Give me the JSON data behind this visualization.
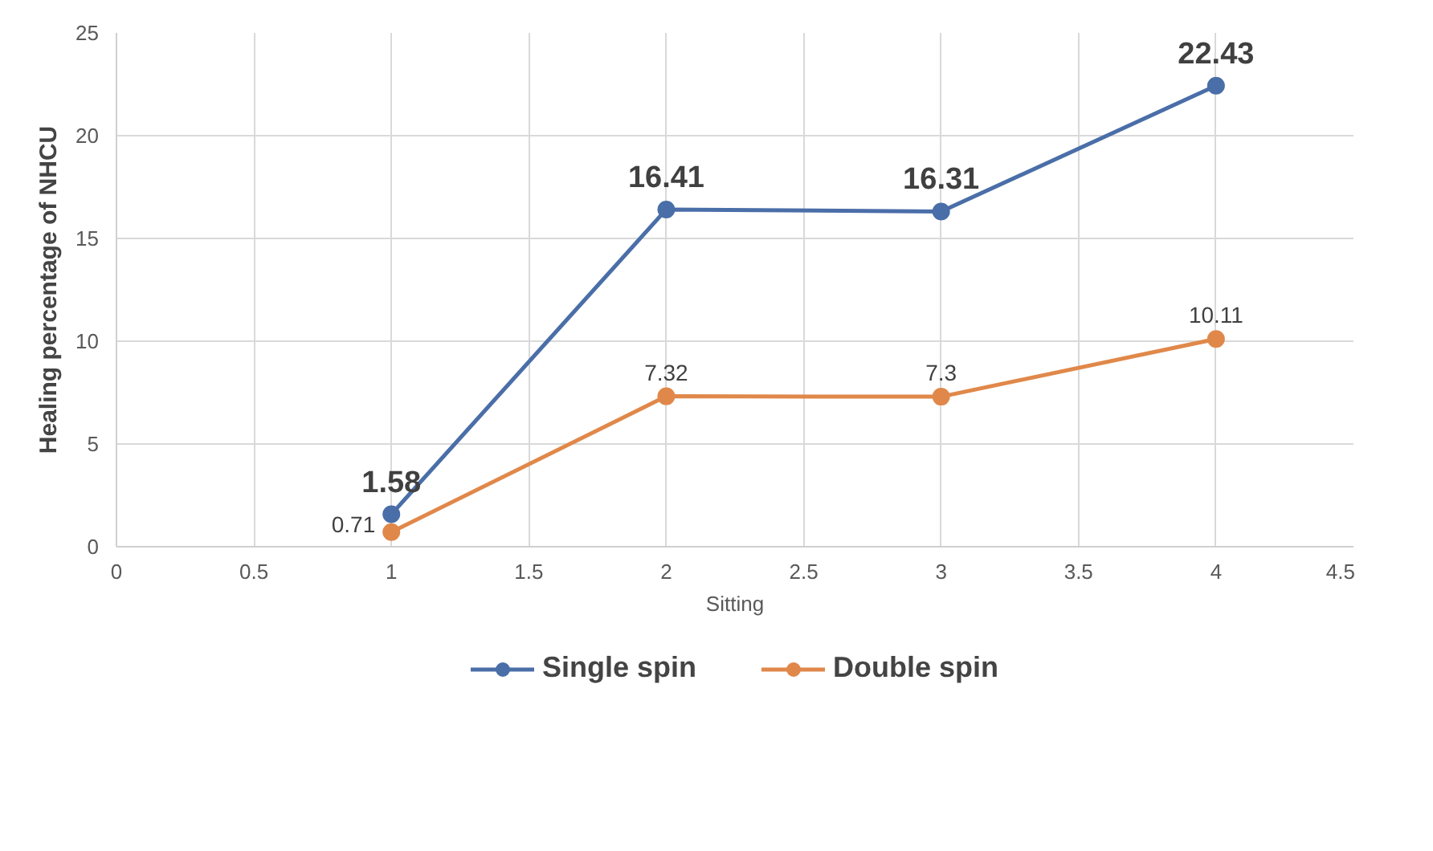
{
  "chart_data": {
    "type": "line",
    "xlabel": "Sitting",
    "ylabel": "Healing percentage of NHCU",
    "x": [
      1,
      2,
      3,
      4
    ],
    "series": [
      {
        "name": "Single spin",
        "color": "#4a6ea8",
        "values": [
          1.58,
          16.41,
          16.31,
          22.43
        ]
      },
      {
        "name": "Double spin",
        "color": "#e0884a",
        "values": [
          0.71,
          7.32,
          7.3,
          10.11
        ]
      }
    ],
    "xlim": [
      0,
      4.5
    ],
    "xticks": [
      0,
      0.5,
      1,
      1.5,
      2,
      2.5,
      3,
      3.5,
      4,
      4.5
    ],
    "ylim": [
      0,
      25
    ],
    "yticks": [
      0,
      5,
      10,
      15,
      20,
      25
    ],
    "grid": true,
    "legend": "bottom",
    "marker": "circle",
    "line_style": "solid",
    "data_labels": true
  }
}
